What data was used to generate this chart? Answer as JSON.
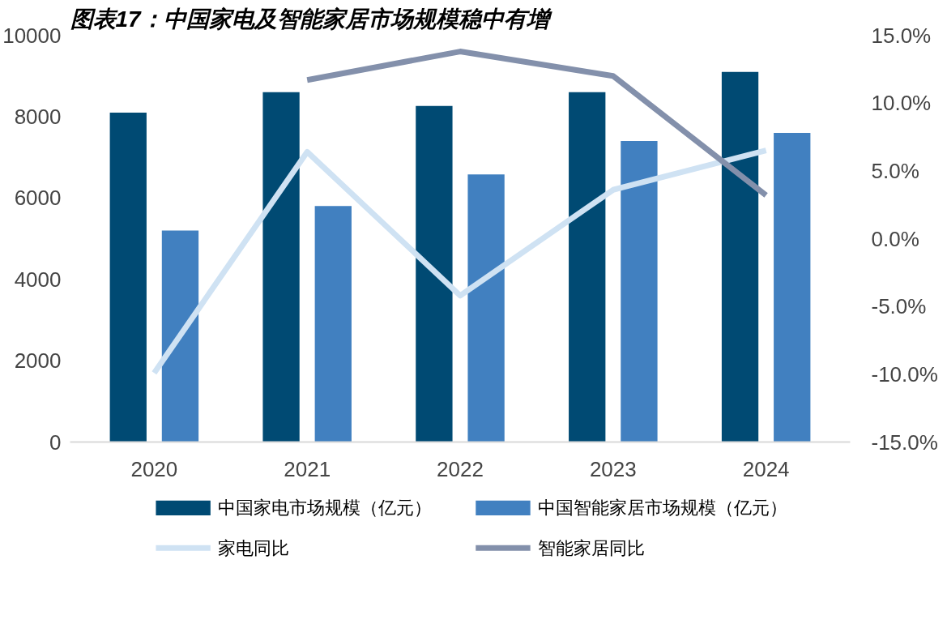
{
  "chart_data": {
    "type": "bar",
    "title": "图表17：中国家电及智能家居市场规模稳中有增",
    "categories": [
      "2020",
      "2021",
      "2022",
      "2023",
      "2024"
    ],
    "series": [
      {
        "name": "中国家电市场规模（亿元）",
        "color": "#004a73",
        "values": [
          8100,
          8600,
          8260,
          8600,
          9100
        ]
      },
      {
        "name": "中国智能家居市场规模（亿元）",
        "color": "#4180c0",
        "values": [
          5200,
          5800,
          6580,
          7400,
          7600
        ]
      },
      {
        "name": "家电同比",
        "type": "line",
        "axis": "y2",
        "color": "#cfe2f3",
        "values": [
          -9.9,
          6.4,
          -4.2,
          3.6,
          6.5
        ]
      },
      {
        "name": "智能家居同比",
        "type": "line",
        "axis": "y2",
        "color": "#8390ab",
        "values": [
          null,
          11.7,
          13.8,
          12.0,
          3.2
        ]
      }
    ],
    "ylim": [
      0,
      10000
    ],
    "yticks": [
      0,
      2000,
      4000,
      6000,
      8000,
      10000
    ],
    "y2lim": [
      -15,
      15
    ],
    "y2ticks": [
      {
        "value": -15,
        "label": "-15.0%"
      },
      {
        "value": -10,
        "label": "-10.0%"
      },
      {
        "value": -5,
        "label": "-5.0%"
      },
      {
        "value": 0,
        "label": "0.0%"
      },
      {
        "value": 5,
        "label": "5.0%"
      },
      {
        "value": 10,
        "label": "10.0%"
      },
      {
        "value": 15,
        "label": "15.0%"
      }
    ],
    "grid": false,
    "legend": "bottom",
    "marker": "none",
    "line_style": "solid"
  }
}
